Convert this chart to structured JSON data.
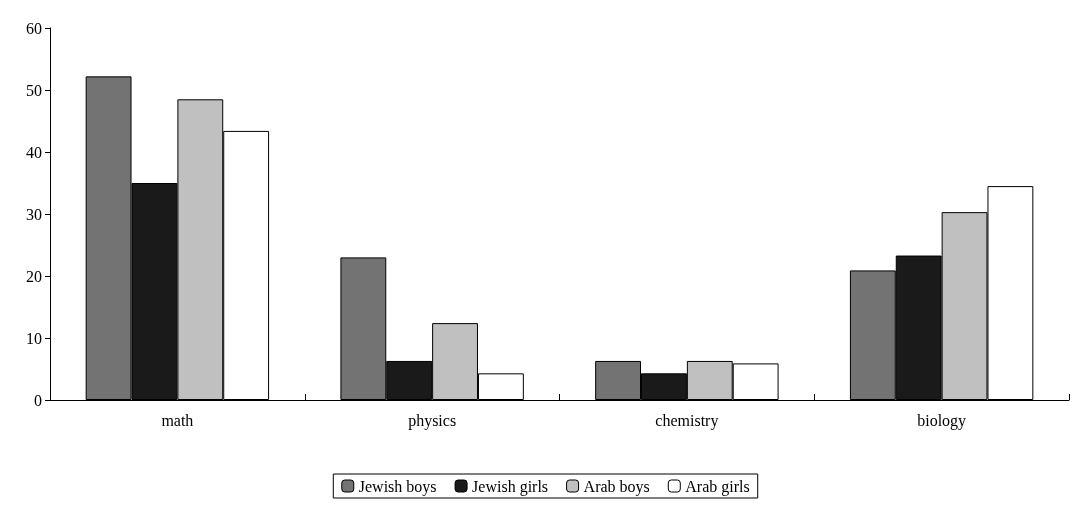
{
  "chart_data": {
    "type": "bar",
    "categories": [
      "math",
      "physics",
      "chemistry",
      "biology"
    ],
    "series": [
      {
        "name": "Jewish boys",
        "color": "#737373",
        "values": [
          52.2,
          23,
          6.3,
          20.9
        ]
      },
      {
        "name": "Jewish girls",
        "color": "#1a1a1a",
        "values": [
          35,
          6.3,
          4.3,
          23.3
        ]
      },
      {
        "name": "Arab boys",
        "color": "#c0c0c0",
        "values": [
          48.5,
          12.4,
          6.3,
          30.3
        ]
      },
      {
        "name": "Arab girls",
        "color": "#ffffff",
        "values": [
          43.4,
          4.3,
          5.9,
          34.5
        ]
      }
    ],
    "ylim": [
      0,
      60
    ],
    "yticks": [
      0,
      10,
      20,
      30,
      40,
      50,
      60
    ],
    "grid": false,
    "legend": "bottom"
  }
}
